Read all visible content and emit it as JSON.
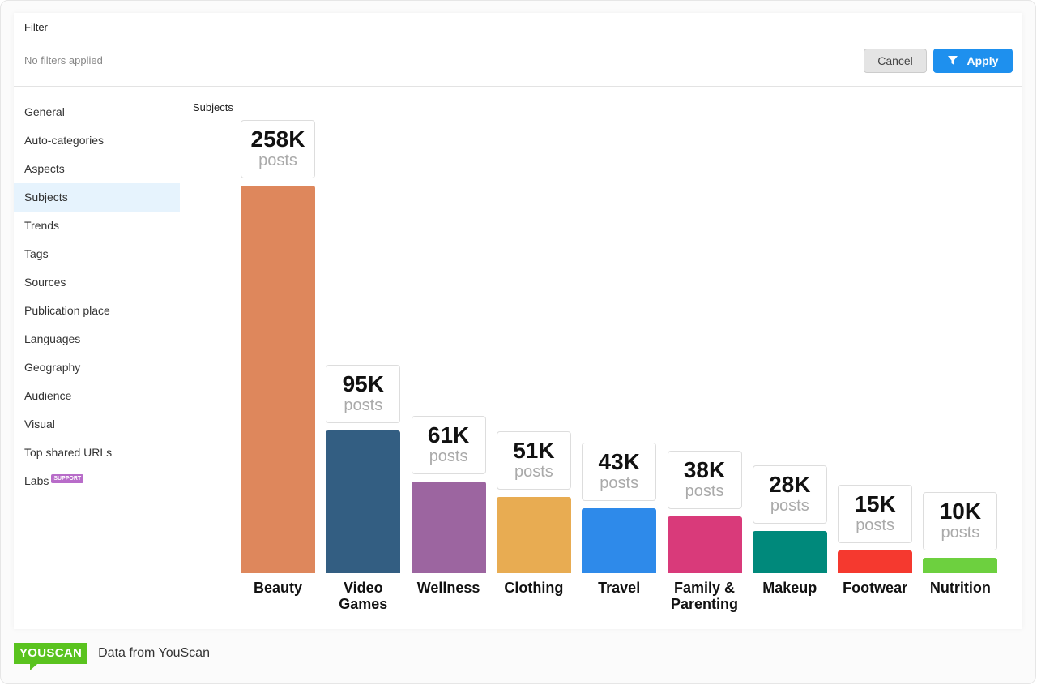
{
  "header": {
    "title": "Filter",
    "status": "No filters applied",
    "cancel_label": "Cancel",
    "apply_label": "Apply",
    "apply_icon": "filter-icon"
  },
  "sidebar": {
    "items": [
      {
        "label": "General"
      },
      {
        "label": "Auto-categories"
      },
      {
        "label": "Aspects"
      },
      {
        "label": "Subjects",
        "active": true
      },
      {
        "label": "Trends"
      },
      {
        "label": "Tags"
      },
      {
        "label": "Sources"
      },
      {
        "label": "Publication place"
      },
      {
        "label": "Languages"
      },
      {
        "label": "Geography"
      },
      {
        "label": "Audience"
      },
      {
        "label": "Visual"
      },
      {
        "label": "Top shared URLs"
      },
      {
        "label": "Labs",
        "badge": "SUPPORT"
      }
    ]
  },
  "footer": {
    "logo": "YOUSCAN",
    "source": "Data from YouScan"
  },
  "chart_data": {
    "type": "bar",
    "title": "Subjects",
    "unit": "posts",
    "categories": [
      "Beauty",
      "Video Games",
      "Wellness",
      "Clothing",
      "Travel",
      "Family & Parenting",
      "Makeup",
      "Footwear",
      "Nutrition"
    ],
    "values": [
      258000,
      95000,
      61000,
      51000,
      43000,
      38000,
      28000,
      15000,
      10000
    ],
    "labels": [
      "258K",
      "95K",
      "61K",
      "51K",
      "43K",
      "38K",
      "28K",
      "15K",
      "10K"
    ],
    "colors": [
      "#DE875C",
      "#335E82",
      "#9C65A0",
      "#E8AC52",
      "#2E8AEA",
      "#D93A7A",
      "#00897B",
      "#F5392F",
      "#6DD03F"
    ],
    "ylim": [
      0,
      258000
    ],
    "grid": false,
    "legend": "none"
  }
}
